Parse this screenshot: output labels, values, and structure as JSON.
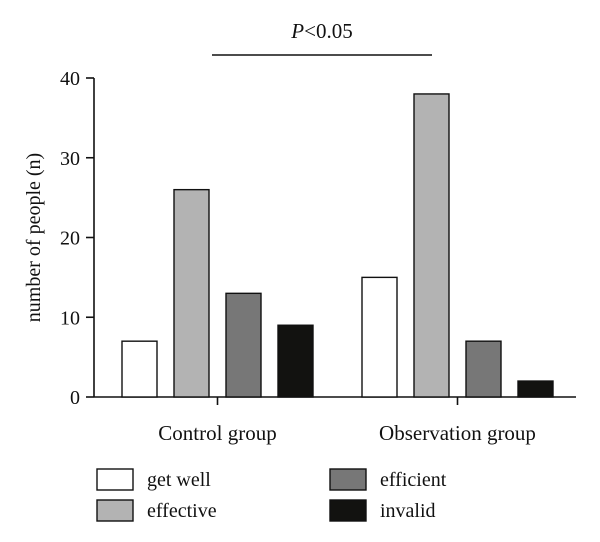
{
  "chart_data": {
    "type": "bar",
    "ylabel": "number of people (n)",
    "xlabel": "",
    "ylim": [
      0,
      40
    ],
    "yticks": [
      "0",
      "10",
      "20",
      "30",
      "40"
    ],
    "categories": [
      "Control group",
      "Observation group"
    ],
    "series": [
      {
        "name": "get well",
        "values": [
          7,
          15
        ],
        "color": "#ffffff"
      },
      {
        "name": "effective",
        "values": [
          26,
          38
        ],
        "color": "#b3b3b3"
      },
      {
        "name": "efficient",
        "values": [
          13,
          7
        ],
        "color": "#777777"
      },
      {
        "name": "invalid",
        "values": [
          9,
          2
        ],
        "color": "#121210"
      }
    ],
    "annotation": {
      "p_symbol": "P",
      "p_rest": "<0.05"
    },
    "legend_placement": "bottom",
    "grid": false
  }
}
